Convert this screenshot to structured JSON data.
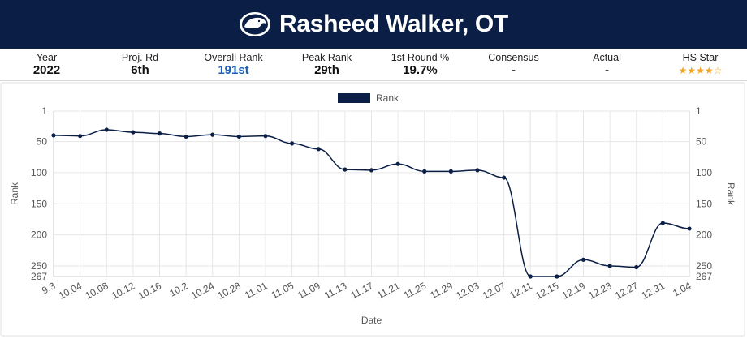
{
  "header": {
    "title": "Rasheed Walker, OT",
    "logo_icon": "nittany-lion-icon",
    "background": "#0b1f46"
  },
  "stats": [
    {
      "label": "Year",
      "value": "2022"
    },
    {
      "label": "Proj. Rd",
      "value": "6th"
    },
    {
      "label": "Overall Rank",
      "value": "191st",
      "accent": "#1a5fb4"
    },
    {
      "label": "Peak Rank",
      "value": "29th"
    },
    {
      "label": "1st Round %",
      "value": "19.7%"
    },
    {
      "label": "Consensus",
      "value": "-"
    },
    {
      "label": "Actual",
      "value": "-"
    },
    {
      "label": "HS Star",
      "stars_filled": 4,
      "stars_total": 5,
      "star_color": "#f4a523"
    }
  ],
  "chart_data": {
    "type": "line",
    "legend": {
      "label": "Rank",
      "position": "top"
    },
    "xlabel": "Date",
    "ylabel": "Rank",
    "y_reversed": true,
    "ylim": [
      1,
      267
    ],
    "yticks": [
      1,
      50,
      100,
      150,
      200,
      250,
      267
    ],
    "grid": true,
    "line_color": "#0b1f46",
    "categories": [
      "9.3",
      "10.04",
      "10.08",
      "10.12",
      "10.16",
      "10.2",
      "10.24",
      "10.28",
      "11.01",
      "11.05",
      "11.09",
      "11.13",
      "11.17",
      "11.21",
      "11.25",
      "11.29",
      "12.03",
      "12.07",
      "12.11",
      "12.15",
      "12.19",
      "12.23",
      "12.27",
      "12.31",
      "1.04"
    ],
    "points": [
      {
        "x": 0,
        "y": 40
      },
      {
        "x": 1,
        "y": 41
      },
      {
        "x": 2,
        "y": 31
      },
      {
        "x": 3,
        "y": 35
      },
      {
        "x": 4,
        "y": 37
      },
      {
        "x": 5,
        "y": 42
      },
      {
        "x": 6,
        "y": 39
      },
      {
        "x": 7,
        "y": 42
      },
      {
        "x": 8,
        "y": 41
      },
      {
        "x": 9,
        "y": 53
      },
      {
        "x": 10,
        "y": 62
      },
      {
        "x": 11,
        "y": 95
      },
      {
        "x": 12,
        "y": 96
      },
      {
        "x": 13,
        "y": 86
      },
      {
        "x": 14,
        "y": 98
      },
      {
        "x": 15,
        "y": 98
      },
      {
        "x": 16,
        "y": 96
      },
      {
        "x": 17,
        "y": 108
      },
      {
        "x": 18,
        "y": 267
      },
      {
        "x": 19,
        "y": 267
      },
      {
        "x": 20,
        "y": 240
      },
      {
        "x": 21,
        "y": 250
      },
      {
        "x": 22,
        "y": 252
      },
      {
        "x": 23,
        "y": 181
      },
      {
        "x": 24,
        "y": 190
      }
    ]
  }
}
